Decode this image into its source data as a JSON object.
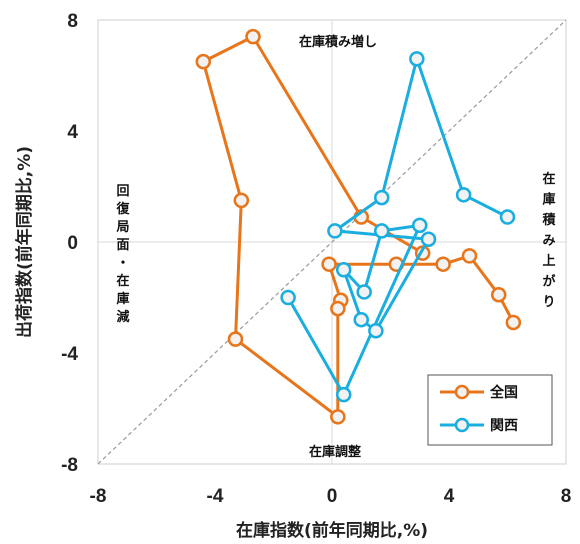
{
  "chart_data": {
    "type": "line",
    "xlabel": "在庫指数(前年同期比,%)",
    "ylabel": "出荷指数(前年同期比,%)",
    "xlim": [
      -8,
      8
    ],
    "ylim": [
      -8,
      8
    ],
    "x_ticks": [
      "-8",
      "-4",
      "0",
      "4",
      "8"
    ],
    "y_ticks": [
      "8",
      "4",
      "0",
      "-4",
      "-8"
    ],
    "diagonal_reference_line": true,
    "legend_position": "bottom-right",
    "annotations": {
      "top": "在庫積み増し",
      "right": "在庫積み上がり",
      "left": "回復局面・在庫減",
      "bottom": "在庫調整"
    },
    "series": [
      {
        "name": "全国",
        "color": "#E8751A",
        "points": [
          [
            6.2,
            -2.9
          ],
          [
            5.7,
            -1.9
          ],
          [
            4.7,
            -0.5
          ],
          [
            3.8,
            -0.8
          ],
          [
            2.2,
            -0.8
          ],
          [
            -0.1,
            -0.8
          ],
          [
            0.3,
            -2.1
          ],
          [
            0.2,
            -2.4
          ],
          [
            0.2,
            -6.3
          ],
          [
            -3.3,
            -3.5
          ],
          [
            -3.1,
            1.5
          ],
          [
            -4.4,
            6.5
          ],
          [
            -2.7,
            7.4
          ],
          [
            1.0,
            0.9
          ],
          [
            3.1,
            -0.4
          ]
        ]
      },
      {
        "name": "関西",
        "color": "#1AADE0",
        "points": [
          [
            6.0,
            0.9
          ],
          [
            4.5,
            1.7
          ],
          [
            2.9,
            6.6
          ],
          [
            1.7,
            1.6
          ],
          [
            0.1,
            0.4
          ],
          [
            3.3,
            0.1
          ],
          [
            1.5,
            -3.2
          ],
          [
            1.0,
            -2.8
          ],
          [
            0.4,
            -1.0
          ],
          [
            1.1,
            -1.8
          ],
          [
            1.7,
            0.4
          ],
          [
            3.0,
            0.6
          ],
          [
            0.4,
            -5.5
          ],
          [
            -1.5,
            -2.0
          ]
        ]
      }
    ]
  }
}
